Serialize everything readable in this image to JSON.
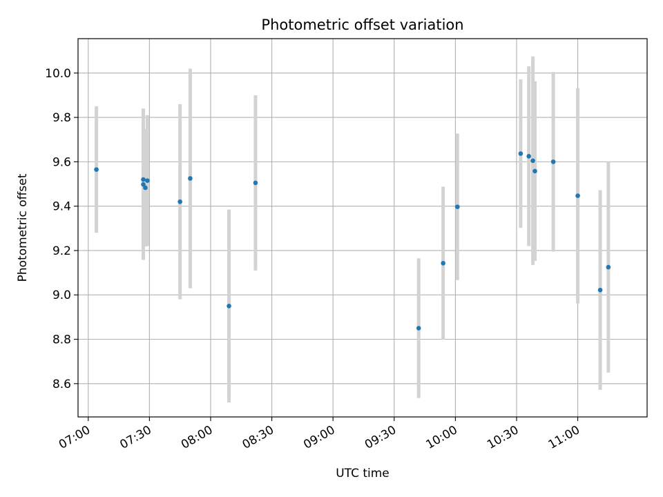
{
  "chart_data": {
    "type": "scatter",
    "title": "Photometric offset variation",
    "xlabel": "UTC time",
    "ylabel": "Photometric offset",
    "x_unit": "UTC time (HH:MM)",
    "xlim": [
      "06:55",
      "11:34"
    ],
    "ylim": [
      8.45,
      10.155
    ],
    "grid": true,
    "x_ticks": [
      "07:00",
      "07:30",
      "08:00",
      "08:30",
      "09:00",
      "09:30",
      "10:00",
      "10:30",
      "11:00"
    ],
    "y_ticks": [
      "8.6",
      "8.8",
      "9.0",
      "9.2",
      "9.4",
      "9.6",
      "9.8",
      "10.0"
    ],
    "errorbar_color": "#d3d3d3",
    "marker_color": "#1f77b4",
    "points": [
      {
        "x": "07:04",
        "y": 9.565,
        "err": 0.285
      },
      {
        "x": "07:27",
        "y": 9.498,
        "err": 0.34
      },
      {
        "x": "07:27",
        "y": 9.52,
        "err": 0.32
      },
      {
        "x": "07:28",
        "y": 9.483,
        "err": 0.265
      },
      {
        "x": "07:29",
        "y": 9.515,
        "err": 0.295
      },
      {
        "x": "07:45",
        "y": 9.42,
        "err": 0.44
      },
      {
        "x": "07:50",
        "y": 9.525,
        "err": 0.495
      },
      {
        "x": "08:09",
        "y": 8.95,
        "err": 0.435
      },
      {
        "x": "08:22",
        "y": 9.505,
        "err": 0.395
      },
      {
        "x": "09:42",
        "y": 8.85,
        "err": 0.315
      },
      {
        "x": "09:54",
        "y": 9.143,
        "err": 0.345
      },
      {
        "x": "10:01",
        "y": 9.397,
        "err": 0.33
      },
      {
        "x": "10:32",
        "y": 9.637,
        "err": 0.335
      },
      {
        "x": "10:36",
        "y": 9.625,
        "err": 0.405
      },
      {
        "x": "10:38",
        "y": 9.605,
        "err": 0.47
      },
      {
        "x": "10:39",
        "y": 9.558,
        "err": 0.405
      },
      {
        "x": "10:48",
        "y": 9.6,
        "err": 0.405
      },
      {
        "x": "11:00",
        "y": 9.447,
        "err": 0.485
      },
      {
        "x": "11:11",
        "y": 9.022,
        "err": 0.45
      },
      {
        "x": "11:15",
        "y": 9.125,
        "err": 0.475
      }
    ]
  }
}
